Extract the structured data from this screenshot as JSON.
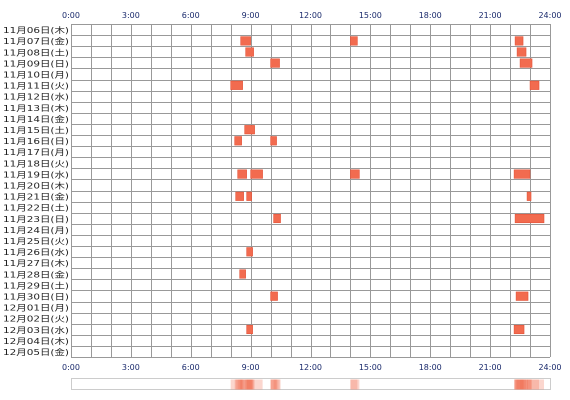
{
  "colors": {
    "grid": "#999999",
    "background": "#ffffff",
    "tick_label": "#1a2a6c",
    "row_label": "#222222",
    "activity": "#f26b4f",
    "activity_edge": "#e04a2f",
    "summary_outline": "#cccccc"
  },
  "chart_data": {
    "type": "heatmap",
    "title": "",
    "xlabel": "",
    "ylabel": "",
    "xlim": [
      0,
      24
    ],
    "x_ticks": [
      "0:00",
      "3:00",
      "6:00",
      "9:00",
      "12:00",
      "15:00",
      "18:00",
      "21:00",
      "24:00"
    ],
    "grid": true,
    "rows": [
      {
        "label": "11月06日(木)",
        "blocks": []
      },
      {
        "label": "11月07日(金)",
        "blocks": [
          [
            8.5,
            9.0
          ],
          [
            14.0,
            14.35
          ],
          [
            22.25,
            22.65
          ]
        ]
      },
      {
        "label": "11月08日(土)",
        "blocks": [
          [
            8.75,
            9.15
          ],
          [
            22.35,
            22.8
          ]
        ]
      },
      {
        "label": "11月09日(日)",
        "blocks": [
          [
            10.0,
            10.45
          ],
          [
            22.5,
            23.1
          ]
        ]
      },
      {
        "label": "11月10日(月)",
        "blocks": []
      },
      {
        "label": "11月11日(火)",
        "blocks": [
          [
            8.0,
            8.6
          ],
          [
            23.0,
            23.45
          ]
        ]
      },
      {
        "label": "11月12日(水)",
        "blocks": []
      },
      {
        "label": "11月13日(木)",
        "blocks": []
      },
      {
        "label": "11月14日(金)",
        "blocks": []
      },
      {
        "label": "11月15日(土)",
        "blocks": [
          [
            8.7,
            9.2
          ]
        ]
      },
      {
        "label": "11月16日(日)",
        "blocks": [
          [
            8.2,
            8.55
          ],
          [
            10.0,
            10.3
          ]
        ]
      },
      {
        "label": "11月17日(月)",
        "blocks": []
      },
      {
        "label": "11月18日(火)",
        "blocks": []
      },
      {
        "label": "11月19日(水)",
        "blocks": [
          [
            8.35,
            8.8
          ],
          [
            9.0,
            9.6
          ],
          [
            14.0,
            14.45
          ],
          [
            22.2,
            23.0
          ]
        ]
      },
      {
        "label": "11月20日(木)",
        "blocks": []
      },
      {
        "label": "11月21日(金)",
        "blocks": [
          [
            8.25,
            8.65
          ],
          [
            8.8,
            9.05
          ],
          [
            22.85,
            23.05
          ]
        ]
      },
      {
        "label": "11月22日(土)",
        "blocks": []
      },
      {
        "label": "11月23日(日)",
        "blocks": [
          [
            10.15,
            10.5
          ],
          [
            22.25,
            23.7
          ]
        ]
      },
      {
        "label": "11月24日(月)",
        "blocks": []
      },
      {
        "label": "11月25日(火)",
        "blocks": []
      },
      {
        "label": "11月26日(水)",
        "blocks": [
          [
            8.8,
            9.1
          ]
        ]
      },
      {
        "label": "11月27日(木)",
        "blocks": []
      },
      {
        "label": "11月28日(金)",
        "blocks": [
          [
            8.45,
            8.75
          ]
        ]
      },
      {
        "label": "11月29日(土)",
        "blocks": []
      },
      {
        "label": "11月30日(日)",
        "blocks": [
          [
            10.0,
            10.35
          ],
          [
            22.3,
            22.9
          ]
        ]
      },
      {
        "label": "12月01日(月)",
        "blocks": []
      },
      {
        "label": "12月02日(火)",
        "blocks": []
      },
      {
        "label": "12月03日(水)",
        "blocks": [
          [
            8.8,
            9.1
          ],
          [
            22.2,
            22.7
          ]
        ]
      },
      {
        "label": "12月04日(木)",
        "blocks": []
      },
      {
        "label": "12月05日(金)",
        "blocks": []
      }
    ]
  }
}
